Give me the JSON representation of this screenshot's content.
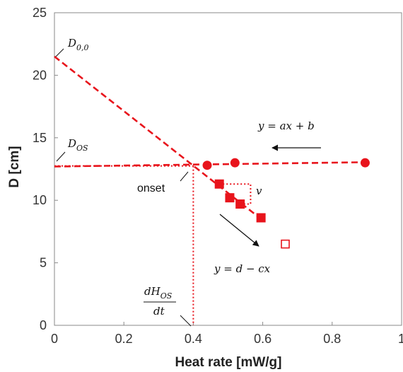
{
  "chart_data": {
    "type": "scatter",
    "xlabel": "Heat rate [mW/g]",
    "ylabel": "D [cm]",
    "xlim": [
      0,
      1
    ],
    "ylim": [
      0,
      25
    ],
    "xticks": [
      "0",
      "0.2",
      "0.4",
      "0.6",
      "0.8",
      "1"
    ],
    "yticks": [
      "0",
      "5",
      "10",
      "15",
      "20",
      "25"
    ],
    "grid": false,
    "colors": {
      "series": "#e8141c"
    },
    "series": [
      {
        "marker": "filled-circle",
        "x": [
          0.44,
          0.52,
          0.895
        ],
        "y": [
          12.8,
          13.0,
          13.0
        ]
      },
      {
        "marker": "filled-square",
        "x": [
          0.475,
          0.505,
          0.535,
          0.595
        ],
        "y": [
          11.3,
          10.2,
          9.7,
          8.6
        ]
      },
      {
        "marker": "open-square",
        "x": [
          0.665
        ],
        "y": [
          6.5
        ]
      }
    ],
    "lines": [
      {
        "style": "dashed",
        "x": [
          0,
          0.6
        ],
        "y": [
          21.5,
          8.4
        ]
      },
      {
        "style": "dashed",
        "x": [
          0,
          0.905
        ],
        "y": [
          12.7,
          13.05
        ]
      }
    ],
    "onset": {
      "x": 0.4,
      "y": 12.75
    },
    "annotations": {
      "d00": {
        "main": "D",
        "sub": "0,0"
      },
      "dos": {
        "main": "D",
        "sub": "OS"
      },
      "onset": "onset",
      "eq_top": "y = ax + b",
      "eq_bottom": "y = d − cx",
      "v": "v",
      "rate_num": {
        "main": "dH",
        "sub": "OS"
      },
      "rate_den": "dt"
    }
  }
}
